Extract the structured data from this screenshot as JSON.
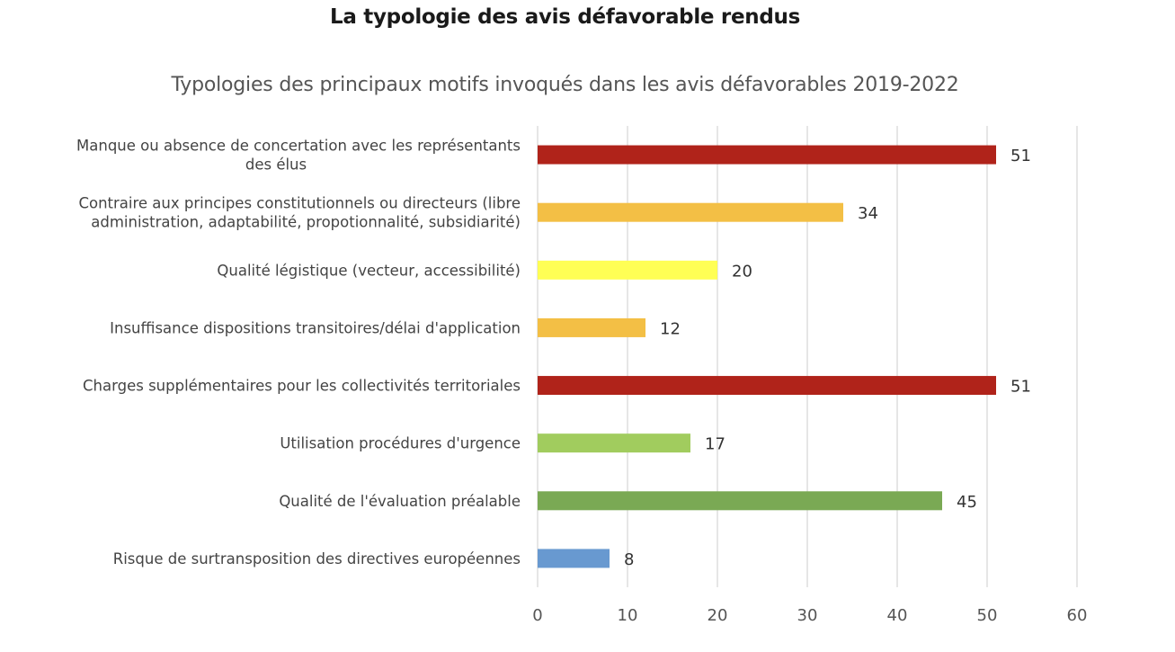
{
  "chart_data": {
    "type": "bar",
    "orientation": "horizontal",
    "title": "La typologie des avis défavorable rendus",
    "subtitle": "Typologies des principaux motifs invoqués dans les avis défavorables 2019-2022",
    "xlabel": "",
    "ylabel": "",
    "xlim": [
      0,
      60
    ],
    "xticks": [
      0,
      10,
      20,
      30,
      40,
      50,
      60
    ],
    "grid": true,
    "legend": "none",
    "categories": [
      [
        "Manque ou absence de concertation avec les représentants",
        "des élus"
      ],
      [
        "Contraire aux principes constitutionnels ou directeurs (libre",
        "administration, adaptabilité, propotionnalité, subsidiarité)"
      ],
      [
        "Qualité légistique (vecteur, accessibilité)"
      ],
      [
        "Insuffisance dispositions transitoires/délai d'application"
      ],
      [
        "Charges supplémentaires pour les collectivités territoriales"
      ],
      [
        "Utilisation procédures d'urgence"
      ],
      [
        "Qualité de l'évaluation préalable"
      ],
      [
        "Risque de surtransposition des directives européennes"
      ]
    ],
    "values": [
      51,
      34,
      20,
      12,
      51,
      17,
      45,
      8
    ],
    "colors": [
      "#b0231a",
      "#f3bf45",
      "#ffff55",
      "#f3bf45",
      "#b0231a",
      "#a1cc5e",
      "#7aa954",
      "#6899d0"
    ],
    "gridline_color": "#d9d9d9"
  }
}
